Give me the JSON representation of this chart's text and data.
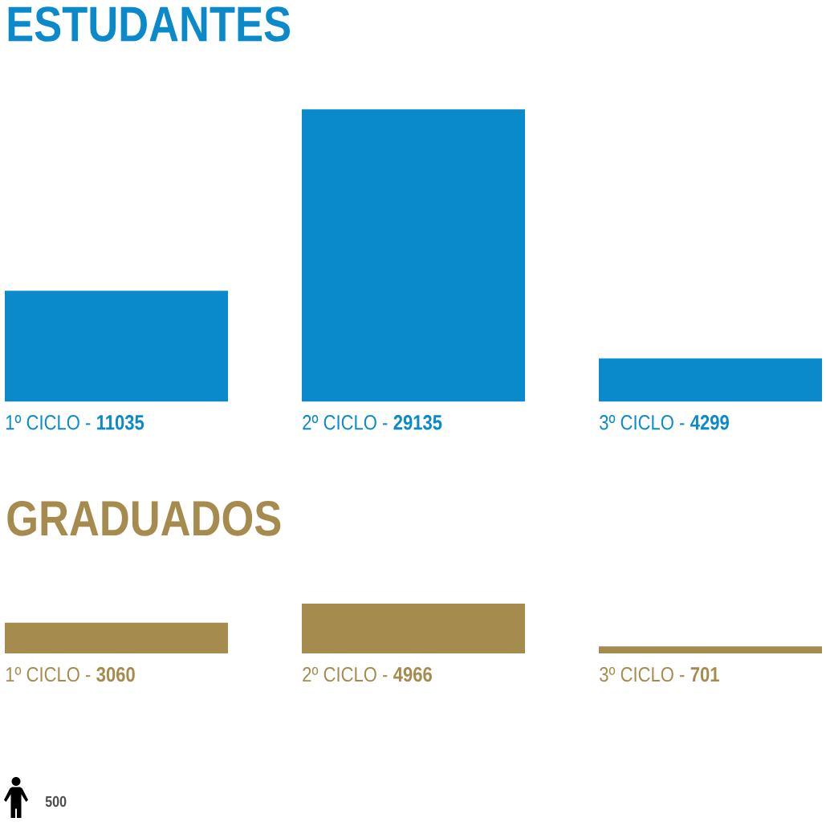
{
  "chart_data": [
    {
      "type": "bar",
      "title": "ESTUDANTES",
      "categories": [
        "1º CICLO -",
        "2º CICLO -",
        "3º CICLO -"
      ],
      "values": [
        11035,
        29135,
        4299
      ],
      "color": "#0a89cb",
      "data_labels": true
    },
    {
      "type": "bar",
      "title": "GRADUADOS",
      "categories": [
        "1º CICLO -",
        "2º CICLO -",
        "3º CICLO -"
      ],
      "values": [
        3060,
        4966,
        701
      ],
      "color": "#a68b4f",
      "data_labels": true,
      "annotations": [
        "500"
      ]
    }
  ]
}
